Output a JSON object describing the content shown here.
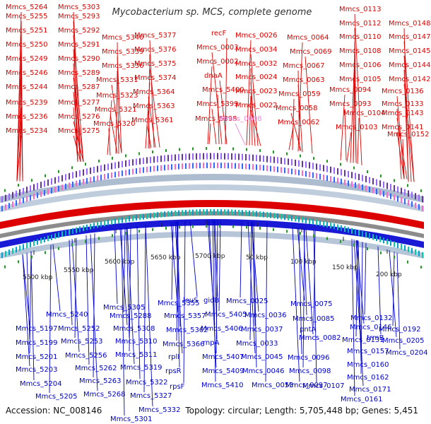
{
  "title": "Mycobacterium sp. MCS, complete genome",
  "footer": {
    "accession": "Accession: NC_008146",
    "topology": "Topology: circular; Length: 5,705,448 bp; Genes: 5,451"
  },
  "colors": {
    "forward": "#dd0000",
    "reverse": "#0000cc",
    "rna": "#ee88dd",
    "backbone": "#888888",
    "tick_mark": "#229922"
  },
  "forward_labels": [
    "Mmcs_5264",
    "Mmcs_5303",
    "Mmcs_5255",
    "Mmcs_5293",
    "Mmcs_5251",
    "Mmcs_5292",
    "Mmcs_5250",
    "Mmcs_5291",
    "Mmcs_5249",
    "Mmcs_5290",
    "Mmcs_5246",
    "Mmcs_5289",
    "Mmcs_5244",
    "Mmcs_5287",
    "Mmcs_5239",
    "Mmcs_5277",
    "Mmcs_5236",
    "Mmcs_5276",
    "Mmcs_5234",
    "Mmcs_5275",
    "Mmcs_5340",
    "Mmcs_5339",
    "Mmcs_5336",
    "Mmcs_5331",
    "Mmcs_5323",
    "Mmcs_5321",
    "Mmcs_5320",
    "Mmcs_5377",
    "Mmcs_5376",
    "Mmcs_5375",
    "Mmcs_5374",
    "Mmcs_5364",
    "Mmcs_5363",
    "Mmcs_5361",
    "recF",
    "Mmcs_0003",
    "Mmcs_0002",
    "dnaA",
    "Mmcs_5400",
    "Mmcs_5399",
    "Mmcs_5398",
    "Mmcs_0008",
    "Mmcs_0026",
    "Mmcs_0034",
    "Mmcs_0032",
    "Mmcs_0024",
    "Mmcs_0023",
    "Mmcs_0022",
    "Mmcs_0064",
    "Mmcs_0069",
    "Mmcs_0067",
    "Mmcs_0063",
    "Mmcs_0059",
    "Mmcs_0058",
    "Mmcs_0062",
    "Mmcs_0113",
    "Mmcs_0112",
    "Mmcs_0148",
    "Mmcs_0110",
    "Mmcs_0147",
    "Mmcs_0108",
    "Mmcs_0145",
    "Mmcs_0106",
    "Mmcs_0144",
    "Mmcs_0105",
    "Mmcs_0142",
    "Mmcs_0094",
    "Mmcs_0136",
    "Mmcs_0093",
    "Mmcs_0133",
    "Mmcs_0104",
    "Mmcs_0143",
    "Mmcs_0103",
    "Mmcs_0141",
    "Mmcs_0152"
  ],
  "reverse_labels": [
    "Mmcs_5197",
    "Mmcs_5199",
    "Mmcs_5201",
    "Mmcs_5203",
    "Mmcs_5204",
    "Mmcs_5205",
    "Mmcs_5240",
    "Mmcs_5252",
    "Mmcs_5253",
    "Mmcs_5256",
    "Mmcs_5262",
    "Mmcs_5263",
    "Mmcs_5268",
    "Mmcs_5305",
    "Mmcs_5288",
    "Mmcs_5308",
    "Mmcs_5310",
    "Mmcs_5311",
    "Mmcs_5319",
    "Mmcs_5322",
    "Mmcs_5327",
    "Mmcs_5332",
    "Mmcs_5301",
    "Mmcs_5355",
    "Mmcs_5357",
    "Mmcs_5362",
    "Mmcs_5366",
    "rplI",
    "rpsR",
    "rpsF",
    "leuS",
    "gidB",
    "Mmcs_5405",
    "Mmcs_5406",
    "rnpA",
    "Mmcs_5407",
    "Mmcs_5409",
    "Mmcs_5410",
    "Mmcs_0025",
    "Mmcs_0036",
    "Mmcs_0037",
    "Mmcs_0033",
    "Mmcs_0045",
    "Mmcs_0046",
    "Mmcs_0053",
    "Mmcs_0075",
    "Mmcs_0085",
    "pntA",
    "Mmcs_0082",
    "Mmcs_0096",
    "Mmcs_0098",
    "Mmcs_0097",
    "Mmcs_0107",
    "Mmcs_0132",
    "Mmcs_0146",
    "trmB",
    "Mmcs_0131",
    "Mmcs_0157",
    "Mmcs_0160",
    "Mmcs_0162",
    "Mmcs_0171",
    "Mmcs_0161",
    "Mmcs_0192",
    "Mmcs_0205",
    "Mmcs_0204"
  ],
  "scale_labels": [
    "5500 kbp",
    "5550 kbp",
    "5600 kbp",
    "5650 kbp",
    "5700 kbp",
    "50 kbp",
    "100 kbp",
    "150 kbp",
    "200 kbp"
  ]
}
